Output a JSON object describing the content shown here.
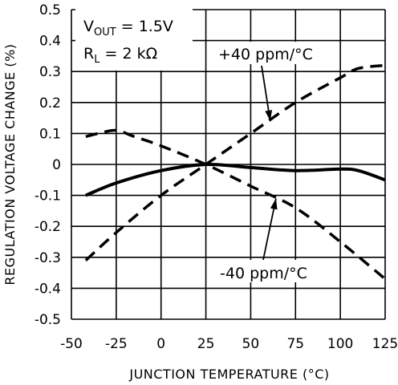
{
  "chart_data": {
    "type": "line",
    "xlabel": "JUNCTION TEMPERATURE (°C)",
    "ylabel": "REGULATION VOLTAGE CHANGE (%)",
    "xlim": [
      -50,
      125
    ],
    "ylim": [
      -0.5,
      0.5
    ],
    "x_ticks": [
      "-50",
      "-25",
      "0",
      "25",
      "50",
      "75",
      "100",
      "125"
    ],
    "y_ticks": [
      "0.5",
      "0.4",
      "0.3",
      "0.2",
      "0.1",
      "0",
      "-0.1",
      "-0.2",
      "-0.3",
      "-0.4",
      "-0.5"
    ],
    "x_tick_values": [
      -50,
      -25,
      0,
      25,
      50,
      75,
      100,
      125
    ],
    "y_tick_values": [
      0.5,
      0.4,
      0.3,
      0.2,
      0.1,
      0,
      -0.1,
      -0.2,
      -0.3,
      -0.4,
      -0.5
    ],
    "grid": true,
    "conditions": {
      "line1": {
        "main": "V",
        "sub": "OUT",
        "rest": " = 1.5V"
      },
      "line2": {
        "main": "R",
        "sub": "L",
        "rest": " = 2 kΩ"
      }
    },
    "series": [
      {
        "name": "+40 ppm/°C",
        "style": "dashed",
        "x": [
          -42,
          -25,
          0,
          25,
          50,
          75,
          100,
          110,
          125
        ],
        "y": [
          -0.31,
          -0.22,
          -0.1,
          0.0,
          0.1,
          0.2,
          0.28,
          0.31,
          0.32
        ]
      },
      {
        "name": "-40 ppm/°C",
        "style": "dashed",
        "x": [
          -42,
          -35,
          -25,
          -15,
          0,
          25,
          50,
          75,
          100,
          125
        ],
        "y": [
          0.09,
          0.1,
          0.11,
          0.09,
          0.06,
          0.0,
          -0.07,
          -0.14,
          -0.25,
          -0.37
        ]
      },
      {
        "name": "",
        "style": "solid",
        "x": [
          -42,
          -25,
          0,
          25,
          50,
          75,
          100,
          110,
          125
        ],
        "y": [
          -0.1,
          -0.06,
          -0.02,
          0.0,
          -0.01,
          -0.02,
          -0.015,
          -0.02,
          -0.05
        ]
      }
    ],
    "annotations": [
      {
        "text": "+40 ppm/°C",
        "target_x": 60,
        "target_y": 0.14
      },
      {
        "text": "-40 ppm/°C",
        "target_x": 65,
        "target_y": -0.11
      }
    ]
  }
}
